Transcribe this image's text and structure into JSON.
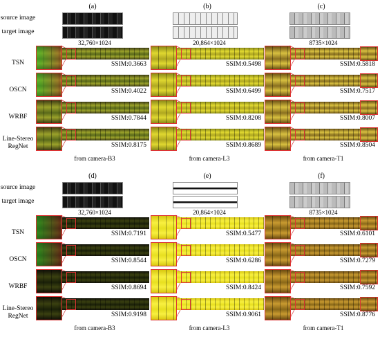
{
  "row_labels": {
    "source": "source image",
    "target": "target image",
    "methods": [
      "TSN",
      "OSCN",
      "WRBF"
    ],
    "method4_line1": "Line-Stereo",
    "method4_line2": "RegNet"
  },
  "blocks": [
    {
      "panels": [
        {
          "letter": "(a)",
          "dims": "32,760×1024",
          "camera": "from camera-B3",
          "ssim": [
            "SSIM:0.3663",
            "SSIM:0.4022",
            "SSIM:0.7844",
            "SSIM:0.8175"
          ]
        },
        {
          "letter": "(b)",
          "dims": "20,864×1024",
          "camera": "from camera-L3",
          "ssim": [
            "SSIM:0.5498",
            "SSIM:0.6499",
            "SSIM:0.8208",
            "SSIM:0.8689"
          ]
        },
        {
          "letter": "(c)",
          "dims": "8735×1024",
          "camera": "from camera-T1",
          "ssim": [
            "SSIM:0.5818",
            "SSIM:0.7517",
            "SSIM:0.8007",
            "SSIM:0.8504"
          ]
        }
      ]
    },
    {
      "panels": [
        {
          "letter": "(d)",
          "dims": "32,760×1024",
          "camera": "from camera-B3",
          "ssim": [
            "SSIM:0.7191",
            "SSIM:0.8544",
            "SSIM:0.8694",
            "SSIM:0.9198"
          ]
        },
        {
          "letter": "(e)",
          "dims": "20,864×1024",
          "camera": "from camera-L3",
          "ssim": [
            "SSIM:0.5477",
            "SSIM:0.6286",
            "SSIM:0.8424",
            "SSIM:0.9061"
          ]
        },
        {
          "letter": "(f)",
          "dims": "8735×1024",
          "camera": "from camera-T1",
          "ssim": [
            "SSIM:0.6101",
            "SSIM:0.7279",
            "SSIM:0.7592",
            "SSIM:0.8776"
          ]
        }
      ]
    }
  ],
  "colors": {
    "accent": "#d33333",
    "olive": "#8a8a1c",
    "yellow": "#f0e020",
    "dark": "#1a1a10"
  }
}
